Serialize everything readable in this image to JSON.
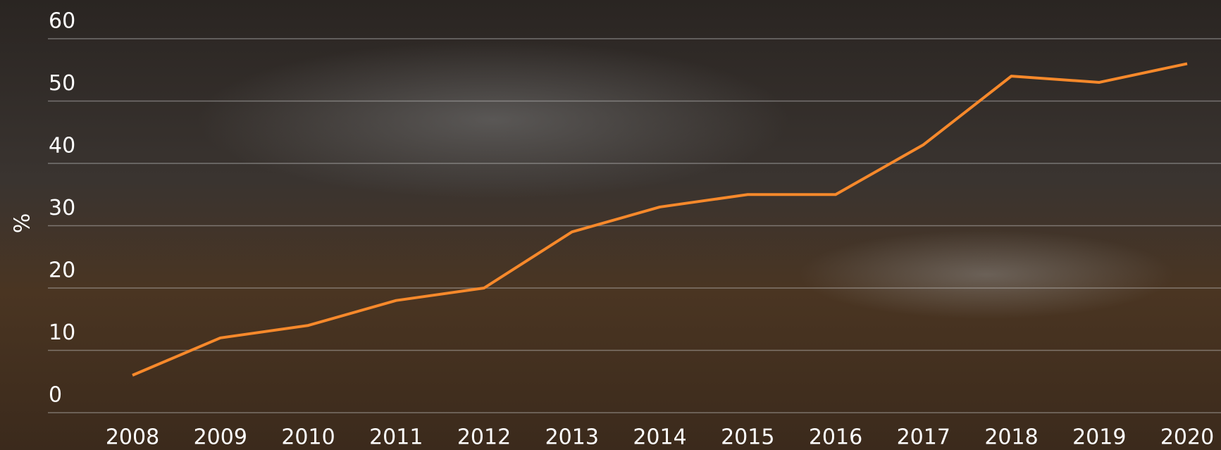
{
  "chart_data": {
    "type": "line",
    "y_label": "%",
    "categories": [
      "2008",
      "2009",
      "2010",
      "2011",
      "2012",
      "2013",
      "2014",
      "2015",
      "2016",
      "2017",
      "2018",
      "2019",
      "2020"
    ],
    "series": [
      {
        "name": "%",
        "color": "#f7892b",
        "values": [
          6,
          12,
          14,
          18,
          20,
          29,
          33,
          35,
          35,
          43,
          54,
          53,
          56
        ]
      }
    ],
    "ylim": [
      0,
      60
    ],
    "yticks": [
      0,
      10,
      20,
      30,
      40,
      50,
      60
    ],
    "grid": true
  }
}
